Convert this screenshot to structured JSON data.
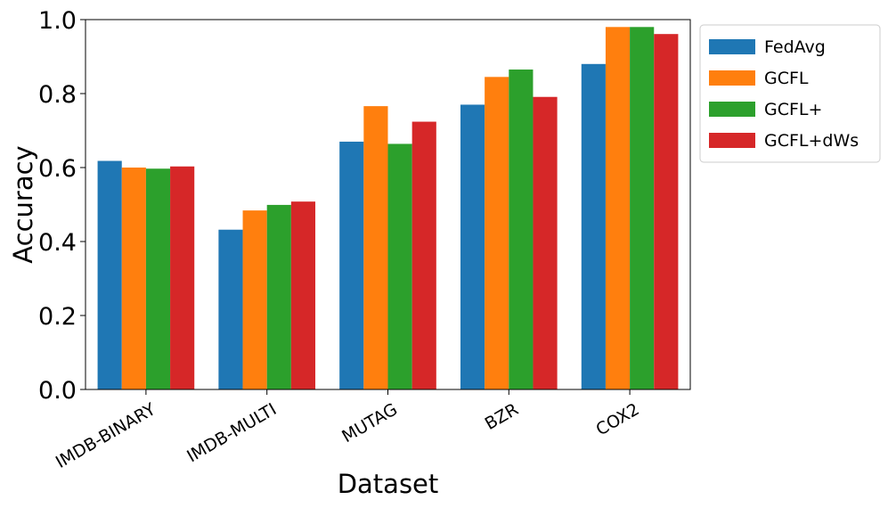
{
  "chart_data": {
    "type": "bar",
    "xlabel": "Dataset",
    "ylabel": "Accuracy",
    "categories": [
      "IMDB-BINARY",
      "IMDB-MULTI",
      "MUTAG",
      "BZR",
      "COX2"
    ],
    "ylim": [
      0.0,
      1.0
    ],
    "yticks": [
      "0.0",
      "0.2",
      "0.4",
      "0.6",
      "0.8",
      "1.0"
    ],
    "grid": false,
    "legend_position": "outside-top-right",
    "series": [
      {
        "name": "FedAvg",
        "color": "#1f77b4",
        "values": [
          0.618,
          0.432,
          0.67,
          0.77,
          0.88
        ]
      },
      {
        "name": "GCFL",
        "color": "#ff7f0e",
        "values": [
          0.6,
          0.484,
          0.766,
          0.845,
          0.98
        ]
      },
      {
        "name": "GCFL+",
        "color": "#2ca02c",
        "values": [
          0.597,
          0.499,
          0.664,
          0.865,
          0.98
        ]
      },
      {
        "name": "GCFL+dWs",
        "color": "#d62728",
        "values": [
          0.603,
          0.508,
          0.724,
          0.791,
          0.961
        ]
      }
    ]
  }
}
